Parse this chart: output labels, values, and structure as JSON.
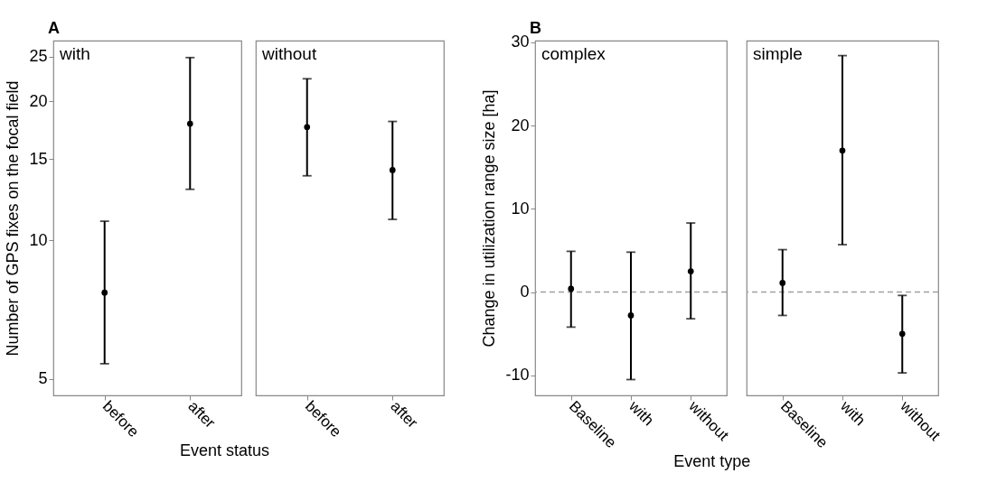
{
  "chart_data": [
    {
      "type": "scatter",
      "title": "with",
      "annotations": [
        "A"
      ],
      "ylabel": "Number of GPS fixes on the focal field",
      "xlabel": "Event status",
      "categories": [
        "before",
        "after"
      ],
      "values": [
        7.7,
        17.9
      ],
      "errors": [
        [
          5.4,
          11.0
        ],
        [
          12.9,
          24.9
        ]
      ],
      "color": "#000000",
      "marker": "circle",
      "log": true,
      "ylim": [
        4.61,
        27.1
      ],
      "yticks": [
        5,
        10,
        15,
        20,
        25
      ],
      "grid": false
    },
    {
      "type": "scatter",
      "title": "without",
      "categories": [
        "before",
        "after"
      ],
      "values": [
        17.6,
        14.2
      ],
      "errors": [
        [
          13.8,
          22.4
        ],
        [
          11.1,
          18.1
        ]
      ],
      "color": "#000000",
      "marker": "circle",
      "log": true,
      "ylim": [
        4.61,
        27.1
      ],
      "yticks": [
        5,
        10,
        15,
        20,
        25
      ],
      "tick_labels": "x",
      "grid": false
    },
    {
      "type": "scatter",
      "title": "complex",
      "annotations": [
        "B"
      ],
      "ylabel": "Change in utilization range size [ha]",
      "xlabel": "Event type",
      "categories": [
        "Baseline",
        "with",
        "without"
      ],
      "values": [
        0.4,
        -2.8,
        2.5
      ],
      "errors": [
        [
          -4.2,
          4.9
        ],
        [
          -10.5,
          4.8
        ],
        [
          -3.2,
          8.3
        ]
      ],
      "color": "#000000",
      "marker": "circle",
      "ylim": [
        -12.4,
        30.2
      ],
      "yticks": [
        -10,
        0,
        10,
        20,
        30
      ],
      "ref_lines": [
        {
          "axis": "y",
          "value": 0,
          "color": "#a0a0a0",
          "line_style": "dashed"
        }
      ],
      "grid": false
    },
    {
      "type": "scatter",
      "title": "simple",
      "categories": [
        "Baseline",
        "with",
        "without"
      ],
      "values": [
        1.1,
        17.0,
        -5.0
      ],
      "errors": [
        [
          -2.8,
          5.1
        ],
        [
          5.7,
          28.4
        ],
        [
          -9.7,
          -0.4
        ]
      ],
      "color": "#000000",
      "marker": "circle",
      "ylim": [
        -12.4,
        30.2
      ],
      "yticks": [
        -10,
        0,
        10,
        20,
        30
      ],
      "tick_labels": "x",
      "ref_lines": [
        {
          "axis": "y",
          "value": 0,
          "color": "#a0a0a0",
          "line_style": "dashed"
        }
      ],
      "grid": false
    }
  ]
}
